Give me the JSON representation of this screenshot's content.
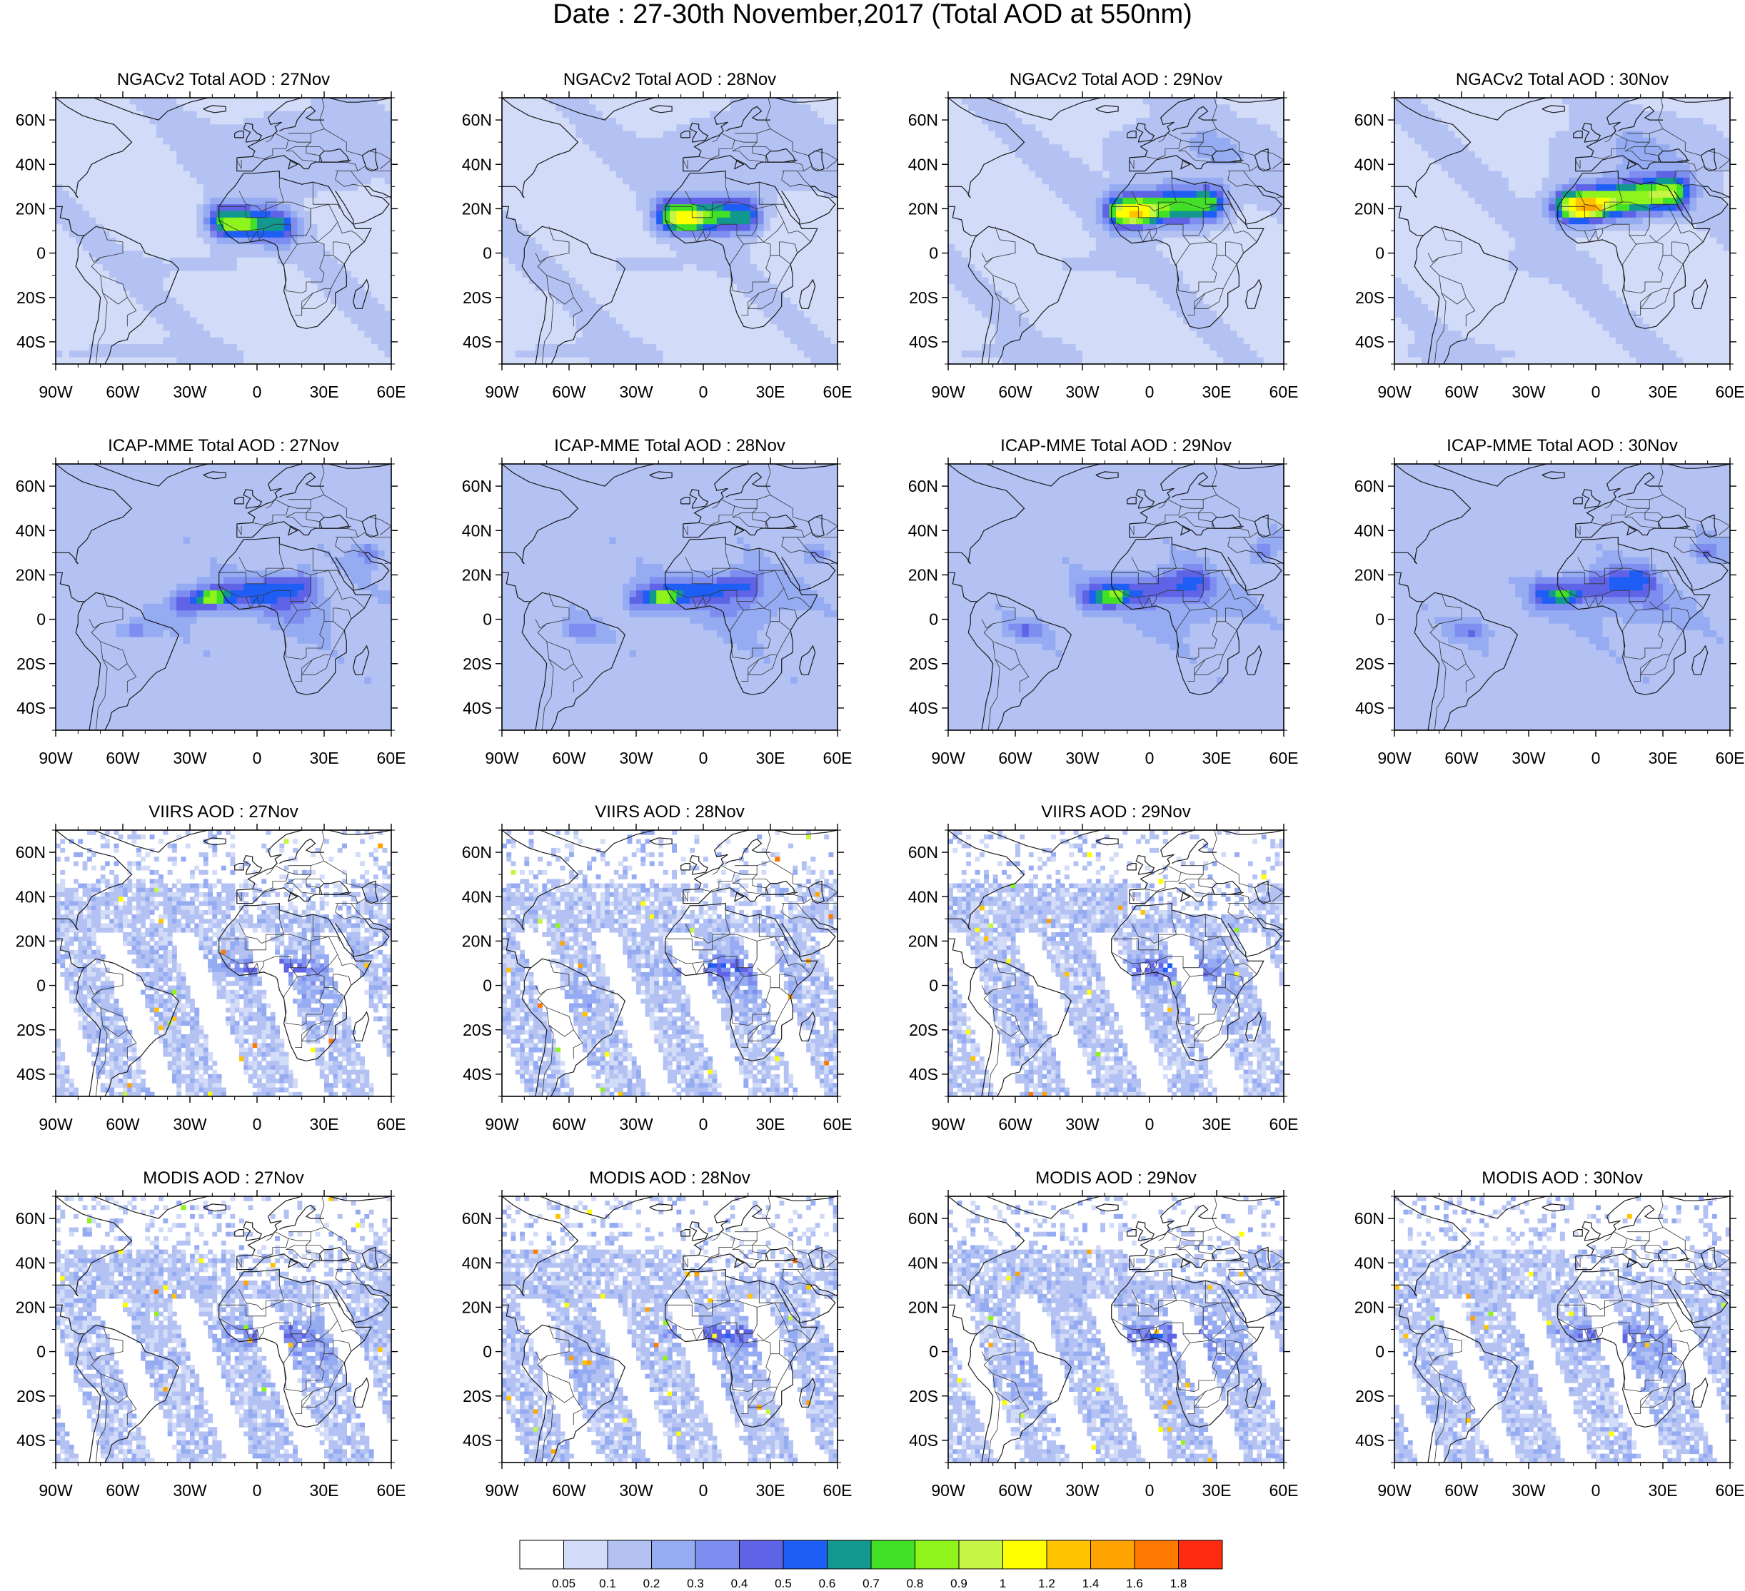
{
  "figure": {
    "title": "Date : 27-30th November,2017 (Total AOD at 550nm)",
    "lon_labels": [
      "90W",
      "60W",
      "30W",
      "0",
      "30E",
      "60E"
    ],
    "lat_labels": [
      "60N",
      "40N",
      "20N",
      "0",
      "20S",
      "40S"
    ],
    "rows": [
      {
        "product": "NGACv2",
        "field": "smooth",
        "panels": [
          {
            "title": "NGACv2 Total AOD : 27Nov",
            "day": "27Nov"
          },
          {
            "title": "NGACv2 Total AOD : 28Nov",
            "day": "28Nov"
          },
          {
            "title": "NGACv2 Total AOD : 29Nov",
            "day": "29Nov"
          },
          {
            "title": "NGACv2 Total AOD : 30Nov",
            "day": "30Nov"
          }
        ]
      },
      {
        "product": "ICAP-MME",
        "field": "smooth",
        "panels": [
          {
            "title": "ICAP-MME Total AOD : 27Nov",
            "day": "27Nov"
          },
          {
            "title": "ICAP-MME Total AOD : 28Nov",
            "day": "28Nov"
          },
          {
            "title": "ICAP-MME Total AOD : 29Nov",
            "day": "29Nov"
          },
          {
            "title": "ICAP-MME Total AOD : 30Nov",
            "day": "30Nov"
          }
        ]
      },
      {
        "product": "VIIRS",
        "field": "swath",
        "panels": [
          {
            "title": "VIIRS AOD : 27Nov",
            "day": "27Nov"
          },
          {
            "title": "VIIRS AOD : 28Nov",
            "day": "28Nov"
          },
          {
            "title": "VIIRS AOD : 29Nov",
            "day": "29Nov"
          }
        ]
      },
      {
        "product": "MODIS",
        "field": "swath",
        "panels": [
          {
            "title": "MODIS AOD : 27Nov",
            "day": "27Nov"
          },
          {
            "title": "MODIS AOD : 28Nov",
            "day": "28Nov"
          },
          {
            "title": "MODIS AOD : 29Nov",
            "day": "29Nov"
          },
          {
            "title": "MODIS AOD : 30Nov",
            "day": "30Nov"
          }
        ]
      }
    ],
    "colorbar": {
      "colors": [
        "#ffffff",
        "#d2dbf7",
        "#b3c2f3",
        "#95abf2",
        "#7e8ef0",
        "#5f63e6",
        "#1f5ef5",
        "#13988f",
        "#42e026",
        "#8ef41c",
        "#c6f545",
        "#ffff00",
        "#ffc300",
        "#ffa300",
        "#ff7800",
        "#ff2a10"
      ],
      "labels": [
        "0.05",
        "0.1",
        "0.2",
        "0.3",
        "0.4",
        "0.5",
        "0.6",
        "0.7",
        "0.8",
        "0.9",
        "1",
        "1.2",
        "1.4",
        "1.6",
        "1.8"
      ]
    }
  }
}
